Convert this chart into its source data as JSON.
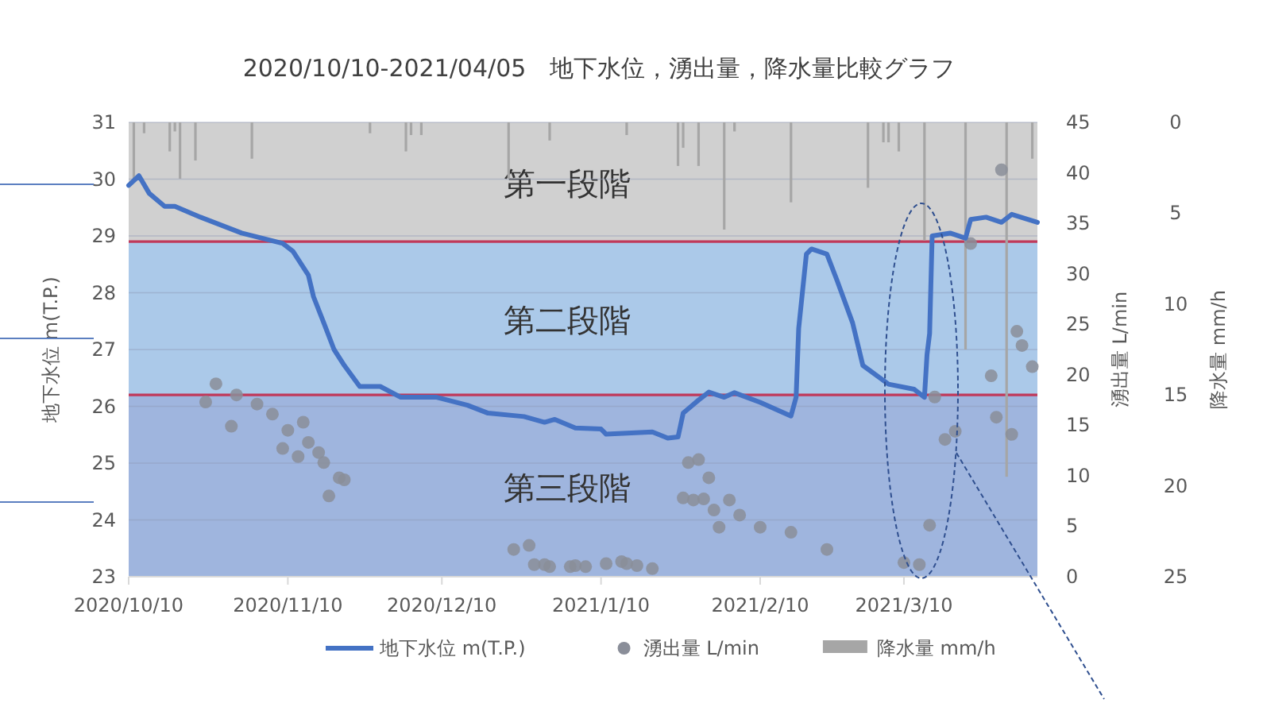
{
  "chart_data": {
    "type": "line",
    "title": "2020/10/10-2021/04/05　地下水位，湧出量，降水量比較グラフ",
    "ylabel": "地下水位 m(T.P.)",
    "y2label": "湧出量 L/min",
    "y3label": "降水量 mm/h",
    "xlim": [
      "2020-10-10",
      "2021-04-05"
    ],
    "xticks": [
      {
        "value": "2020-10-10",
        "label": "2020/10/10"
      },
      {
        "value": "2020-11-10",
        "label": "2020/11/10"
      },
      {
        "value": "2020-12-10",
        "label": "2020/12/10"
      },
      {
        "value": "2021-01-10",
        "label": "2021/1/10"
      },
      {
        "value": "2021-02-10",
        "label": "2021/2/10"
      },
      {
        "value": "2021-03-10",
        "label": "2021/3/10"
      }
    ],
    "ylim": [
      23,
      31
    ],
    "yticks": [
      23,
      24,
      25,
      26,
      27,
      28,
      29,
      30,
      31
    ],
    "y2lim": [
      0,
      45
    ],
    "y2ticks": [
      0,
      5,
      10,
      15,
      20,
      25,
      30,
      35,
      40,
      45
    ],
    "y3lim": [
      25,
      0
    ],
    "y3ticks": [
      0,
      5,
      10,
      15,
      20,
      25
    ],
    "grid": "y",
    "legend": "bottom",
    "bands": [
      {
        "axis": "y",
        "from": 28.9,
        "to": 31,
        "label": "第一段階",
        "color": "#d0d0d0"
      },
      {
        "axis": "y",
        "from": 26.2,
        "to": 28.9,
        "label": "第二段階",
        "color": "#abc9e9"
      },
      {
        "axis": "y",
        "from": 23,
        "to": 26.2,
        "label": "第三段階",
        "color": "#9fb5de"
      }
    ],
    "ref_lines": [
      {
        "axis": "y",
        "value": 28.9,
        "color": "#c0395a"
      },
      {
        "axis": "y",
        "value": 26.2,
        "color": "#c0395a"
      }
    ],
    "series": [
      {
        "name": "地下水位 m(T.P.)",
        "color": "#4472c4",
        "x": [
          "2020-10-10",
          "2020-10-12",
          "2020-10-14",
          "2020-10-17",
          "2020-10-19",
          "2020-10-24",
          "2020-11-01",
          "2020-11-09",
          "2020-11-11",
          "2020-11-14",
          "2020-11-15",
          "2020-11-17",
          "2020-11-19",
          "2020-11-21",
          "2020-11-24",
          "2020-11-28",
          "2020-12-02",
          "2020-12-09",
          "2020-12-15",
          "2020-12-19",
          "2020-12-26",
          "2020-12-30",
          "2021-01-01",
          "2021-01-05",
          "2021-01-10",
          "2021-01-11",
          "2021-01-20",
          "2021-01-23",
          "2021-01-25",
          "2021-01-26",
          "2021-01-29",
          "2021-01-31",
          "2021-02-03",
          "2021-02-05",
          "2021-02-10",
          "2021-02-16",
          "2021-02-17",
          "2021-02-17T12:00",
          "2021-02-19",
          "2021-02-20",
          "2021-02-23",
          "2021-02-25",
          "2021-02-28",
          "2021-03-02",
          "2021-03-07",
          "2021-03-12",
          "2021-03-14",
          "2021-03-14T12:00",
          "2021-03-15",
          "2021-03-15T12:00",
          "2021-03-19",
          "2021-03-22",
          "2021-03-23",
          "2021-03-26",
          "2021-03-29",
          "2021-03-31",
          "2021-04-05"
        ],
        "values": [
          29.89,
          30.06,
          29.75,
          29.52,
          29.52,
          29.33,
          29.05,
          28.87,
          28.73,
          28.31,
          27.93,
          27.47,
          27.0,
          26.72,
          26.35,
          26.35,
          26.16,
          26.16,
          26.02,
          25.88,
          25.82,
          25.72,
          25.77,
          25.62,
          25.6,
          25.51,
          25.55,
          25.44,
          25.46,
          25.88,
          26.11,
          26.25,
          26.16,
          26.24,
          26.07,
          25.83,
          26.16,
          27.37,
          28.68,
          28.77,
          28.68,
          28.21,
          27.47,
          26.72,
          26.39,
          26.3,
          26.16,
          26.91,
          27.28,
          29.0,
          29.05,
          28.96,
          29.29,
          29.33,
          29.24,
          29.38,
          29.24
        ]
      },
      {
        "name": "湧出量 L/min",
        "type": "scatter",
        "axis": "y2",
        "marker": "circle",
        "color": "#8a8e99",
        "x": [
          "2020-10-25",
          "2020-10-27",
          "2020-10-30",
          "2020-10-31",
          "2020-11-04",
          "2020-11-07",
          "2020-11-09",
          "2020-11-10",
          "2020-11-12",
          "2020-11-13",
          "2020-11-14",
          "2020-11-16",
          "2020-11-17",
          "2020-11-18",
          "2020-11-20",
          "2020-11-21",
          "2020-12-24",
          "2020-12-27",
          "2020-12-28",
          "2020-12-30",
          "2020-12-31",
          "2021-01-04",
          "2021-01-05",
          "2021-01-07",
          "2021-01-11",
          "2021-01-14",
          "2021-01-15",
          "2021-01-17",
          "2021-01-20",
          "2021-01-26",
          "2021-01-27",
          "2021-01-28",
          "2021-01-29",
          "2021-01-30",
          "2021-01-31",
          "2021-02-01",
          "2021-02-02",
          "2021-02-04",
          "2021-02-06",
          "2021-02-10",
          "2021-02-16",
          "2021-02-23",
          "2021-03-10",
          "2021-03-13",
          "2021-03-15",
          "2021-03-16",
          "2021-03-18",
          "2021-03-20",
          "2021-03-23",
          "2021-03-27",
          "2021-03-28",
          "2021-03-29",
          "2021-03-31",
          "2021-04-01",
          "2021-04-02",
          "2021-04-04"
        ],
        "values": [
          17.3,
          19.1,
          14.9,
          18.0,
          17.1,
          16.1,
          12.7,
          14.5,
          11.9,
          15.3,
          13.3,
          12.3,
          11.3,
          8.0,
          9.8,
          9.6,
          2.7,
          3.1,
          1.2,
          1.2,
          1.0,
          1.0,
          1.1,
          1.0,
          1.3,
          1.5,
          1.3,
          1.1,
          0.8,
          7.8,
          11.3,
          7.6,
          11.6,
          7.7,
          9.8,
          6.6,
          4.9,
          7.6,
          6.1,
          4.9,
          4.4,
          2.7,
          1.4,
          1.2,
          5.1,
          17.8,
          13.6,
          14.4,
          33.0,
          19.9,
          15.8,
          40.3,
          14.1,
          24.3,
          22.9,
          20.8
        ]
      },
      {
        "name": "降水量 mm/h",
        "type": "bar",
        "axis": "y3",
        "color": "#a6a6a6",
        "x": [
          "2020-10-11",
          "2020-10-13",
          "2020-10-18",
          "2020-10-19",
          "2020-10-20",
          "2020-10-23",
          "2020-11-03",
          "2020-11-26",
          "2020-12-03",
          "2020-12-04",
          "2020-12-06",
          "2020-12-23",
          "2020-12-31",
          "2021-01-15",
          "2021-01-25",
          "2021-01-26",
          "2021-01-29",
          "2021-02-03",
          "2021-02-05",
          "2021-02-16",
          "2021-03-03",
          "2021-03-06",
          "2021-03-07",
          "2021-03-09",
          "2021-03-14",
          "2021-03-22",
          "2021-03-30",
          "2021-04-04"
        ],
        "values": [
          3.1,
          0.6,
          1.6,
          0.5,
          3.1,
          2.1,
          2.0,
          0.6,
          1.6,
          0.7,
          0.7,
          3.1,
          1.0,
          0.7,
          2.4,
          1.4,
          2.4,
          5.9,
          0.5,
          4.4,
          3.6,
          1.1,
          1.1,
          1.6,
          6.5,
          12.5,
          19.5,
          2.0
        ]
      }
    ]
  }
}
